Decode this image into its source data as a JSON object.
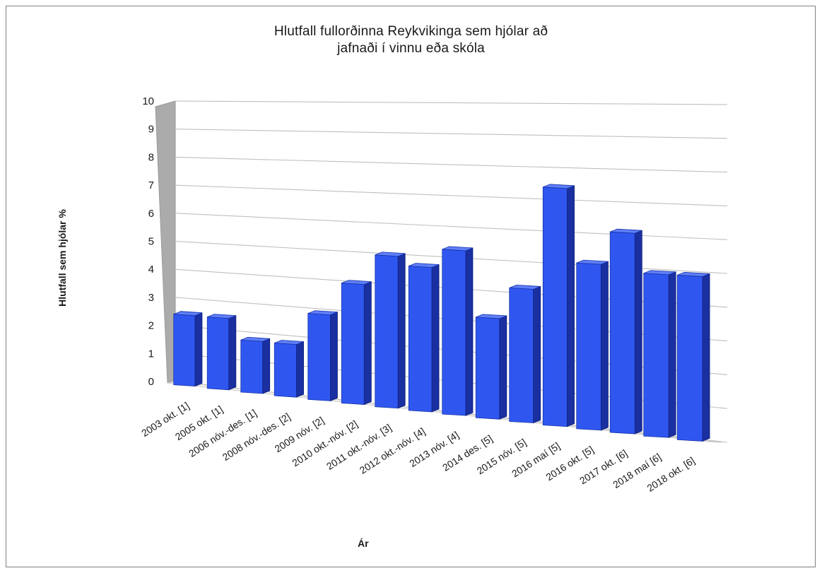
{
  "chart_data": {
    "type": "bar",
    "title": "Hlutfall fullorðinna Reykvikinga sem hjólar að jafnaði í vinnu eða skóla",
    "title_lines": [
      "Hlutfall  fullorðinna  Reykvikinga sem hjólar að",
      "jafnaði í vinnu eða skóla"
    ],
    "xlabel": "Ár",
    "ylabel": "Hlutfall sem hjólar %",
    "ylim": [
      0,
      10
    ],
    "yticks": [
      "0",
      "1",
      "2",
      "3",
      "4",
      "5",
      "6",
      "7",
      "8",
      "9",
      "10"
    ],
    "grid": true,
    "legend": "none",
    "bar_color": "#2f57f0",
    "categories": [
      "2003 okt. [1]",
      "2005 okt. [1]",
      "2006 nóv.-des. [1]",
      "2008 nóv.-des. [2]",
      "2009 nóv. [2]",
      "2010 okt.-nóv. [2]",
      "2011 okt.-nóv. [3]",
      "2012 okt.-nóv. [4]",
      "2013 nóv. [4]",
      "2014 des. [5]",
      "2015 nóv. [5]",
      "2016 maí [5]",
      "2016 okt. [5]",
      "2017 okt. [6]",
      "2018 maí [6]",
      "2018 okt. [6]"
    ],
    "values": [
      2.5,
      2.5,
      1.8,
      1.8,
      2.9,
      4.0,
      5.0,
      4.7,
      5.3,
      3.2,
      4.2,
      7.4,
      5.1,
      6.1,
      4.9,
      4.9
    ]
  }
}
